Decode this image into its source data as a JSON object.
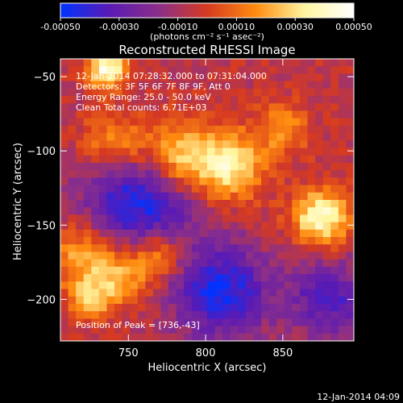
{
  "colorbar": {
    "tick_labels": [
      "-0.00050",
      "-0.00030",
      "-0.00010",
      "0.00010",
      "0.00030",
      "0.00050"
    ],
    "tick_values": [
      -0.0005,
      -0.0003,
      -0.0001,
      0.0001,
      0.0003,
      0.0005
    ],
    "range": [
      -0.0005,
      0.0005
    ],
    "units": "(photons cm⁻² s⁻¹ asec⁻²)",
    "colors": [
      "#0033ff",
      "#5a1ab4",
      "#8a2f8a",
      "#d63a20",
      "#ff8c10",
      "#fff6a0",
      "#ffffff"
    ]
  },
  "chart_data": {
    "type": "heatmap",
    "title": "Reconstructed RHESSI Image",
    "xlabel": "Heliocentric X (arcsec)",
    "ylabel": "Heliocentric Y (arcsec)",
    "xlim": [
      706,
      896
    ],
    "ylim": [
      -228,
      -38
    ],
    "x_ticks": [
      750,
      800,
      850
    ],
    "y_ticks": [
      -50,
      -100,
      -150,
      -200
    ],
    "annotations": [
      "12-Jan-2014 07:28:32.000 to 07:31:04.000",
      "Detectors: 3F 5F 6F 7F 8F 9F, Att 0",
      "Energy Range: 25.0 - 50.0 keV",
      "Clean    Total counts: 6.71E+03"
    ],
    "peak_label": "Position of Peak = [736,-43]",
    "peak": [
      736,
      -43
    ],
    "sources": [
      {
        "x": 736,
        "y": -45,
        "sigma": 9,
        "amp": 1.0
      },
      {
        "x": 780,
        "y": -105,
        "sigma": 18,
        "amp": 0.85
      },
      {
        "x": 815,
        "y": -110,
        "sigma": 16,
        "amp": 0.8
      },
      {
        "x": 740,
        "y": -95,
        "sigma": 14,
        "amp": 0.55
      },
      {
        "x": 875,
        "y": -145,
        "sigma": 13,
        "amp": 0.95
      },
      {
        "x": 720,
        "y": -170,
        "sigma": 14,
        "amp": 0.55
      },
      {
        "x": 745,
        "y": -185,
        "sigma": 12,
        "amp": 0.6
      },
      {
        "x": 770,
        "y": -170,
        "sigma": 12,
        "amp": 0.55
      },
      {
        "x": 725,
        "y": -200,
        "sigma": 10,
        "amp": 0.65
      },
      {
        "x": 850,
        "y": -85,
        "sigma": 12,
        "amp": 0.45
      }
    ],
    "negative_regions": [
      {
        "x": 760,
        "y": -130,
        "sigma": 25,
        "amp": -0.9
      },
      {
        "x": 810,
        "y": -195,
        "sigma": 22,
        "amp": -0.8
      },
      {
        "x": 880,
        "y": -200,
        "sigma": 18,
        "amp": -0.6
      }
    ]
  },
  "footer": {
    "timestamp": "12-Jan-2014 04:09"
  }
}
